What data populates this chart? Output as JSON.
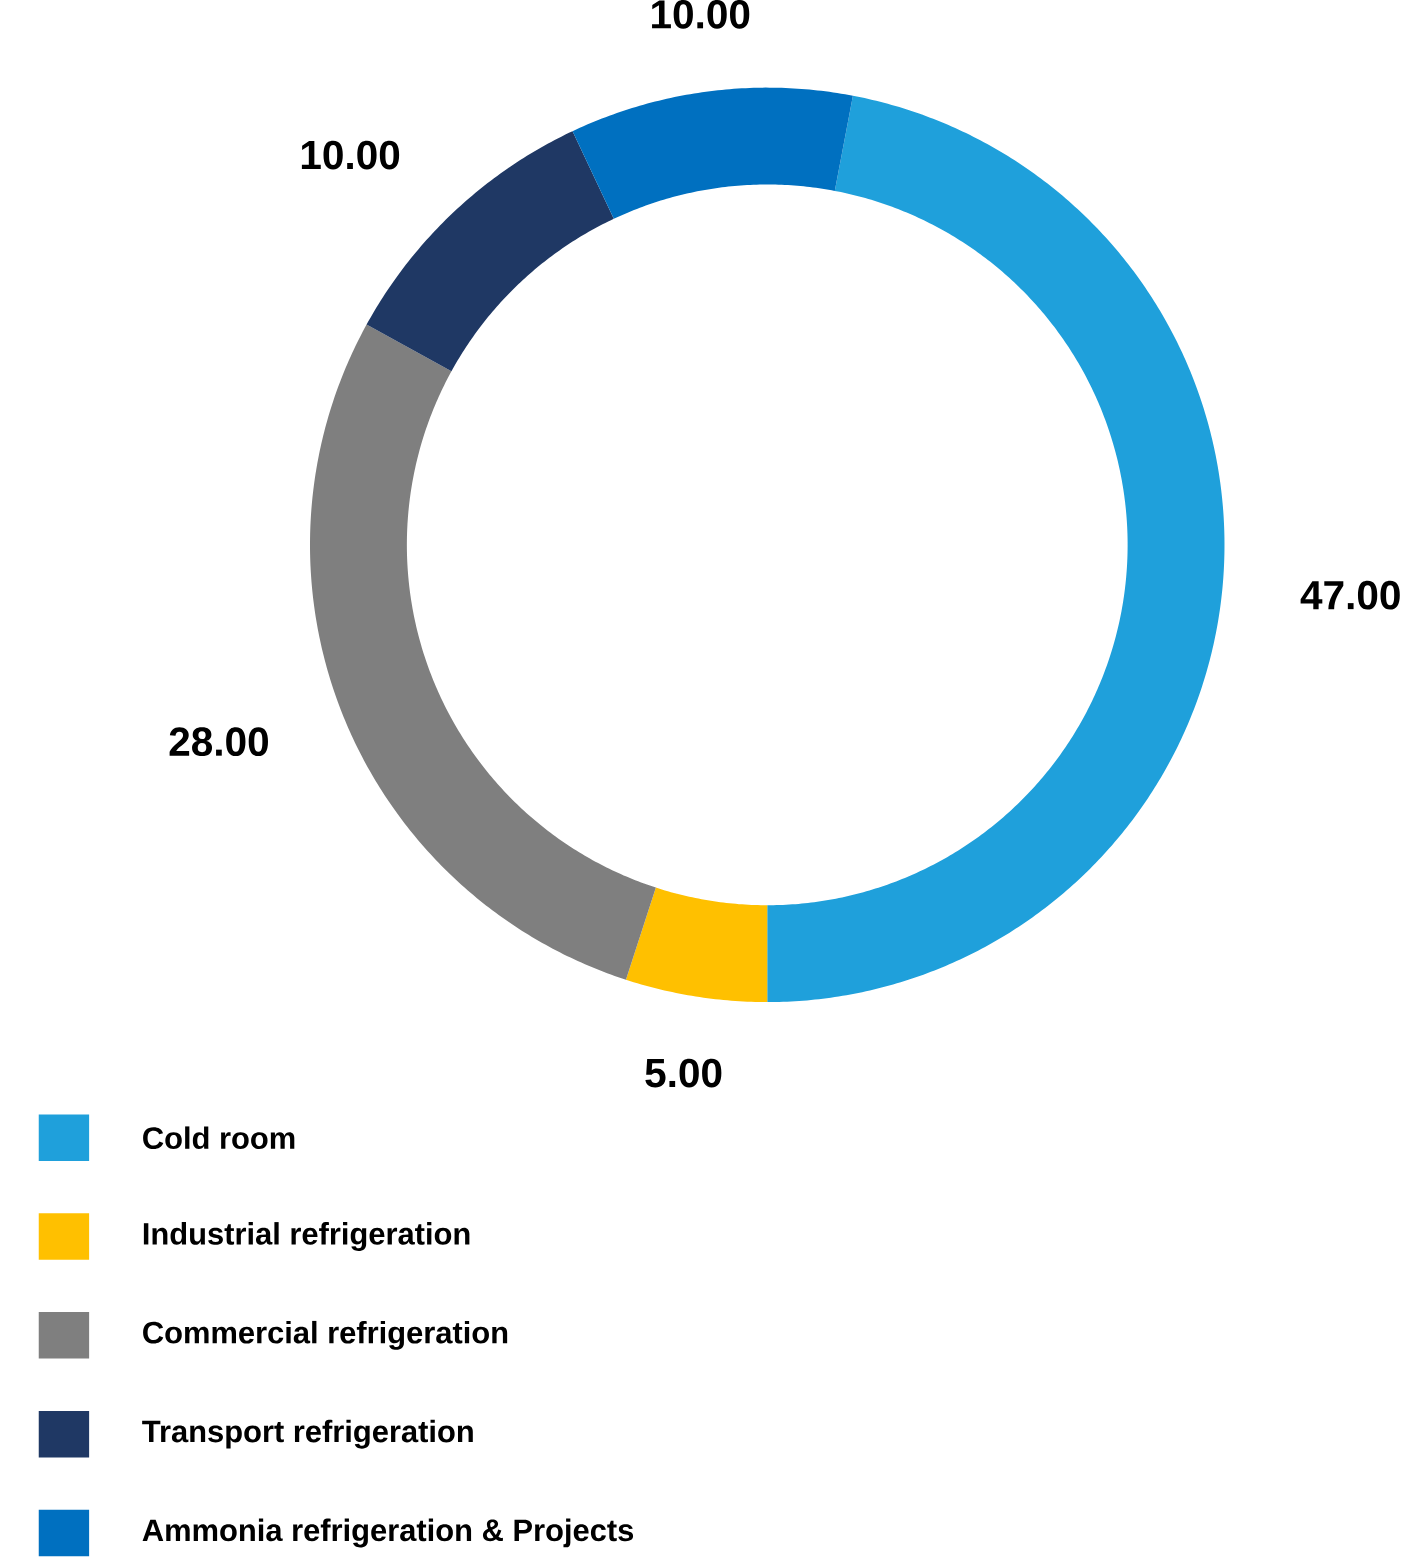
{
  "chart_data": {
    "type": "donut",
    "categories": [
      "Cold room",
      "Industrial refrigeration",
      "Commercial refrigeration",
      "Transport refrigeration",
      "Ammonia refrigeration & Projects"
    ],
    "values": [
      47,
      5,
      28,
      10,
      10
    ],
    "colors": [
      "#1fa0db",
      "#ffc000",
      "#7f7f7f",
      "#1f3864",
      "#0070c0"
    ],
    "value_labels": [
      "47.00",
      "5.00",
      "28.00",
      "10.00",
      "10.00"
    ],
    "legend": "bottom left"
  }
}
